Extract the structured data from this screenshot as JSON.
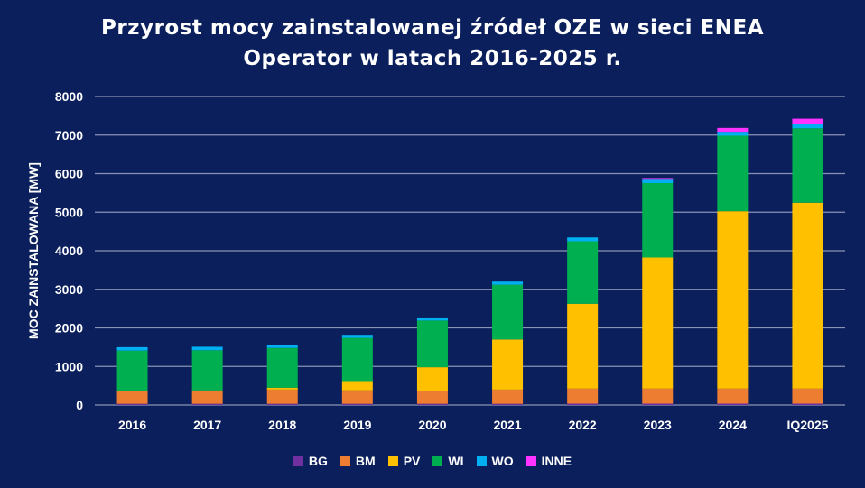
{
  "chart_data": {
    "type": "bar",
    "stacked": true,
    "title_line1": "Przyrost mocy zainstalowanej źródeł OZE w sieci ENEA",
    "title_line2": "Operator w latach 2016-2025 r.",
    "ylabel": "MOC ZAINSTALOWANA [MW]",
    "xlabel": "",
    "ylim": [
      0,
      8000
    ],
    "yticks": [
      "0",
      "1000",
      "2000",
      "3000",
      "4000",
      "5000",
      "6000",
      "7000",
      "8000"
    ],
    "ytick_values": [
      0,
      1000,
      2000,
      3000,
      4000,
      5000,
      6000,
      7000,
      8000
    ],
    "grid": true,
    "legend_position": "bottom",
    "categories": [
      "2016",
      "2017",
      "2018",
      "2019",
      "2020",
      "2021",
      "2022",
      "2023",
      "2024",
      "IQ2025"
    ],
    "series": [
      {
        "name": "BG",
        "color": "#7030a0",
        "values": [
          30,
          30,
          30,
          30,
          30,
          30,
          35,
          35,
          35,
          35
        ]
      },
      {
        "name": "BM",
        "color": "#ed7d31",
        "values": [
          330,
          330,
          370,
          350,
          330,
          370,
          390,
          390,
          390,
          390
        ]
      },
      {
        "name": "PV",
        "color": "#ffc000",
        "values": [
          10,
          20,
          50,
          240,
          620,
          1300,
          2200,
          3400,
          4600,
          4820
        ]
      },
      {
        "name": "WI",
        "color": "#00b050",
        "values": [
          1040,
          1040,
          1030,
          1120,
          1210,
          1420,
          1620,
          1930,
          1960,
          1930
        ]
      },
      {
        "name": "WO",
        "color": "#00b0f0",
        "values": [
          90,
          90,
          80,
          80,
          80,
          80,
          100,
          110,
          100,
          100
        ]
      },
      {
        "name": "INNE",
        "color": "#ff33ff",
        "values": [
          0,
          0,
          0,
          0,
          0,
          0,
          0,
          20,
          100,
          150
        ]
      }
    ]
  }
}
